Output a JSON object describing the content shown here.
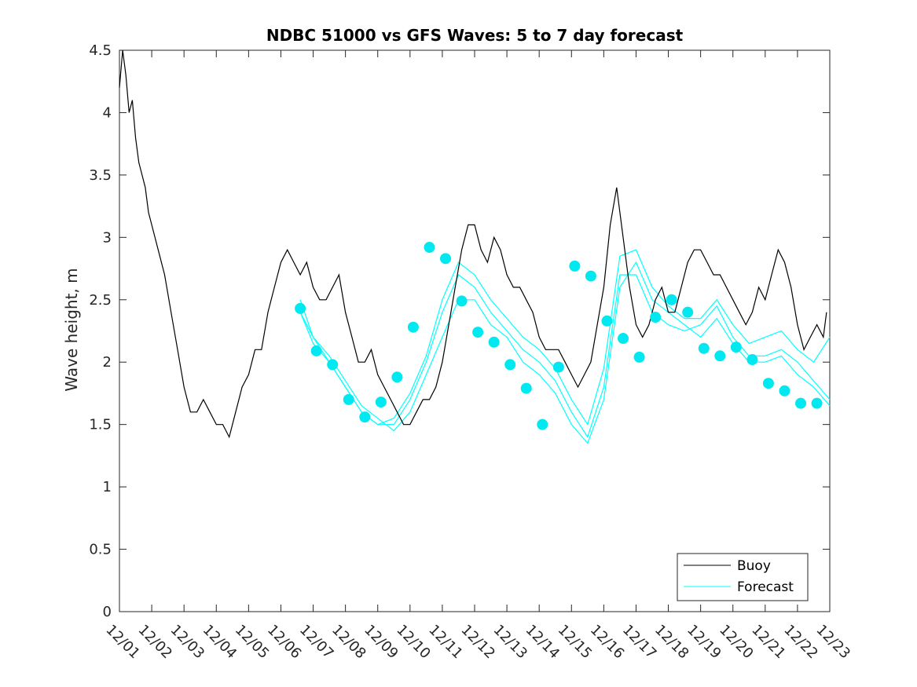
{
  "chart_data": {
    "type": "line",
    "title": "NDBC 51000 vs GFS Waves: 5 to 7 day forecast",
    "xlabel": "",
    "ylabel": "Wave height, m",
    "ylim": [
      0,
      4.5
    ],
    "yticks": [
      0,
      0.5,
      1,
      1.5,
      2,
      2.5,
      3,
      3.5,
      4,
      4.5
    ],
    "ytick_labels": [
      "0",
      "0.5",
      "1",
      "1.5",
      "2",
      "2.5",
      "3",
      "3.5",
      "4",
      "4.5"
    ],
    "xlim": [
      0,
      22
    ],
    "xticks": [
      0,
      1,
      2,
      3,
      4,
      5,
      6,
      7,
      8,
      9,
      10,
      11,
      12,
      13,
      14,
      15,
      16,
      17,
      18,
      19,
      20,
      21,
      22
    ],
    "xtick_labels": [
      "12/01",
      "12/02",
      "12/03",
      "12/04",
      "12/05",
      "12/06",
      "12/07",
      "12/08",
      "12/09",
      "12/10",
      "12/11",
      "12/12",
      "12/13",
      "12/14",
      "12/15",
      "12/16",
      "12/17",
      "12/18",
      "12/19",
      "12/20",
      "12/21",
      "12/22",
      "12/23"
    ],
    "legend": {
      "location": "bottom-right",
      "entries": [
        "Buoy",
        "Forecast"
      ]
    },
    "colors": {
      "buoy": "#000000",
      "forecast": "#00FFFF",
      "marker": "#00E8F0",
      "axis": "#262626"
    },
    "buoy": {
      "name": "Buoy",
      "x": [
        0,
        0.1,
        0.2,
        0.3,
        0.4,
        0.5,
        0.6,
        0.7,
        0.8,
        0.9,
        1.0,
        1.2,
        1.4,
        1.6,
        1.8,
        2.0,
        2.2,
        2.4,
        2.6,
        2.8,
        3.0,
        3.2,
        3.4,
        3.6,
        3.8,
        4.0,
        4.2,
        4.4,
        4.6,
        4.8,
        5.0,
        5.2,
        5.4,
        5.6,
        5.8,
        6.0,
        6.2,
        6.4,
        6.6,
        6.8,
        7.0,
        7.2,
        7.4,
        7.6,
        7.8,
        8.0,
        8.2,
        8.4,
        8.6,
        8.8,
        9.0,
        9.2,
        9.4,
        9.6,
        9.8,
        10.0,
        10.2,
        10.4,
        10.6,
        10.8,
        11.0,
        11.2,
        11.4,
        11.6,
        11.8,
        12.0,
        12.2,
        12.4,
        12.6,
        12.8,
        13.0,
        13.2,
        13.4,
        13.6,
        13.8,
        14.0,
        14.2,
        14.4,
        14.6,
        14.8,
        15.0,
        15.2,
        15.4,
        15.6,
        15.8,
        16.0,
        16.2,
        16.4,
        16.6,
        16.8,
        17.0,
        17.2,
        17.4,
        17.6,
        17.8,
        18.0,
        18.2,
        18.4,
        18.6,
        18.8,
        19.0,
        19.2,
        19.4,
        19.6,
        19.8,
        20.0,
        20.2,
        20.4,
        20.6,
        20.8,
        21.0,
        21.2,
        21.4,
        21.6,
        21.8,
        21.9
      ],
      "y": [
        4.2,
        4.5,
        4.3,
        4.0,
        4.1,
        3.8,
        3.6,
        3.5,
        3.4,
        3.2,
        3.1,
        2.9,
        2.7,
        2.4,
        2.1,
        1.8,
        1.6,
        1.6,
        1.7,
        1.6,
        1.5,
        1.5,
        1.4,
        1.6,
        1.8,
        1.9,
        2.1,
        2.1,
        2.4,
        2.6,
        2.8,
        2.9,
        2.8,
        2.7,
        2.8,
        2.6,
        2.5,
        2.5,
        2.6,
        2.7,
        2.4,
        2.2,
        2.0,
        2.0,
        2.1,
        1.9,
        1.8,
        1.7,
        1.6,
        1.5,
        1.5,
        1.6,
        1.7,
        1.7,
        1.8,
        2.0,
        2.3,
        2.6,
        2.9,
        3.1,
        3.1,
        2.9,
        2.8,
        3.0,
        2.9,
        2.7,
        2.6,
        2.6,
        2.5,
        2.4,
        2.2,
        2.1,
        2.1,
        2.1,
        2.0,
        1.9,
        1.8,
        1.9,
        2.0,
        2.3,
        2.6,
        3.1,
        3.4,
        3.0,
        2.6,
        2.3,
        2.2,
        2.3,
        2.5,
        2.6,
        2.4,
        2.4,
        2.6,
        2.8,
        2.9,
        2.9,
        2.8,
        2.7,
        2.7,
        2.6,
        2.5,
        2.4,
        2.3,
        2.4,
        2.6,
        2.5,
        2.7,
        2.9,
        2.8,
        2.6,
        2.3,
        2.1,
        2.2,
        2.3,
        2.2,
        2.4
      ]
    },
    "forecast": {
      "name": "Forecast",
      "series": [
        {
          "x": [
            5.6,
            6.0,
            6.5,
            7.0,
            7.5,
            8.0,
            8.5,
            9.0,
            9.5,
            10.0,
            10.5,
            11.0,
            11.5,
            12.0,
            12.5,
            13.0,
            13.5,
            14.0,
            14.5,
            15.0,
            15.5,
            16.0,
            16.5,
            17.0,
            17.5,
            18.0,
            18.5,
            19.0,
            19.5,
            20.0,
            20.5,
            21.0,
            21.5,
            22.0
          ],
          "y": [
            2.4,
            2.2,
            2.0,
            1.8,
            1.6,
            1.5,
            1.5,
            1.7,
            2.0,
            2.4,
            2.7,
            2.6,
            2.4,
            2.25,
            2.1,
            2.0,
            1.85,
            1.6,
            1.4,
            1.8,
            2.7,
            2.7,
            2.4,
            2.3,
            2.25,
            2.3,
            2.45,
            2.2,
            2.05,
            2.05,
            2.1,
            2.0,
            1.85,
            1.7
          ]
        },
        {
          "x": [
            5.6,
            6.0,
            6.5,
            7.0,
            7.5,
            8.0,
            8.5,
            9.0,
            9.5,
            10.0,
            10.5,
            11.0,
            11.5,
            12.0,
            12.5,
            13.0,
            13.5,
            14.0,
            14.5,
            15.0,
            15.5,
            16.0,
            16.5,
            17.0,
            17.5,
            18.0,
            18.5,
            19.0,
            19.5,
            20.0,
            20.5,
            21.0,
            21.5,
            22.0
          ],
          "y": [
            2.5,
            2.2,
            2.05,
            1.85,
            1.65,
            1.55,
            1.45,
            1.6,
            1.9,
            2.2,
            2.5,
            2.5,
            2.3,
            2.2,
            2.0,
            1.9,
            1.75,
            1.5,
            1.35,
            1.7,
            2.6,
            2.8,
            2.5,
            2.4,
            2.3,
            2.2,
            2.35,
            2.15,
            2.0,
            2.0,
            2.05,
            1.9,
            1.8,
            1.65
          ]
        },
        {
          "x": [
            5.6,
            6.0,
            6.5,
            7.0,
            7.5,
            8.0,
            8.5,
            9.0,
            9.5,
            10.0,
            10.5,
            11.0,
            11.5,
            12.0,
            12.5,
            13.0,
            13.5,
            14.0,
            14.5,
            15.0,
            15.5,
            16.0,
            16.5,
            17.0,
            17.5,
            18.0,
            18.5,
            19.0,
            19.5,
            20.0,
            20.5,
            21.0,
            21.5,
            22.0
          ],
          "y": [
            2.4,
            2.15,
            2.0,
            1.8,
            1.6,
            1.5,
            1.55,
            1.75,
            2.05,
            2.5,
            2.8,
            2.7,
            2.5,
            2.35,
            2.2,
            2.1,
            1.95,
            1.7,
            1.5,
            1.95,
            2.85,
            2.9,
            2.6,
            2.45,
            2.35,
            2.35,
            2.5,
            2.3,
            2.15,
            2.2,
            2.25,
            2.1,
            2.0,
            2.2
          ]
        }
      ],
      "markers": {
        "x": [
          5.6,
          6.1,
          6.6,
          7.1,
          7.6,
          8.1,
          8.6,
          9.1,
          9.6,
          10.1,
          10.6,
          11.1,
          11.6,
          12.1,
          12.6,
          13.1,
          13.6,
          14.1,
          14.6,
          15.1,
          15.6,
          16.1,
          16.6,
          17.1,
          17.6,
          18.1,
          18.6,
          19.1,
          19.6,
          20.1,
          20.6,
          21.1,
          21.6
        ],
        "y": [
          2.43,
          2.09,
          1.98,
          1.7,
          1.56,
          1.68,
          1.88,
          2.28,
          2.92,
          2.83,
          2.49,
          2.24,
          2.16,
          1.98,
          1.79,
          1.5,
          1.96,
          2.77,
          2.69,
          2.33,
          2.19,
          2.04,
          2.36,
          2.5,
          2.4,
          2.11,
          2.05,
          2.12,
          2.02,
          1.83,
          1.77,
          1.67,
          1.67
        ]
      }
    }
  }
}
